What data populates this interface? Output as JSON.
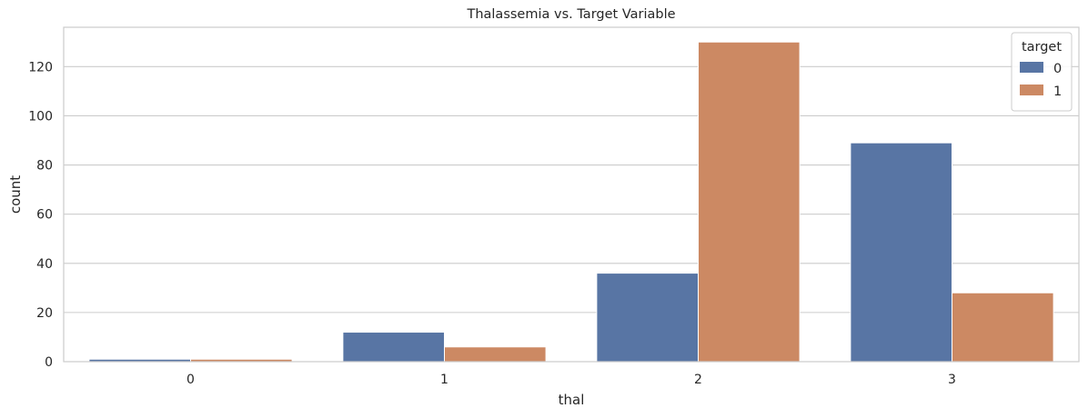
{
  "chart_data": {
    "type": "bar",
    "title": "Thalassemia vs. Target Variable",
    "xlabel": "thal",
    "ylabel": "count",
    "categories": [
      "0",
      "1",
      "2",
      "3"
    ],
    "series": [
      {
        "name": "0",
        "values": [
          1,
          12,
          36,
          89
        ],
        "color": "#5875a4"
      },
      {
        "name": "1",
        "values": [
          1,
          6,
          130,
          28
        ],
        "color": "#cc8963"
      }
    ],
    "ylim": [
      0,
      136
    ],
    "yticks": [
      0,
      20,
      40,
      60,
      80,
      100,
      120
    ],
    "grid": true,
    "legend": {
      "title": "target",
      "placement": "top-right"
    }
  }
}
